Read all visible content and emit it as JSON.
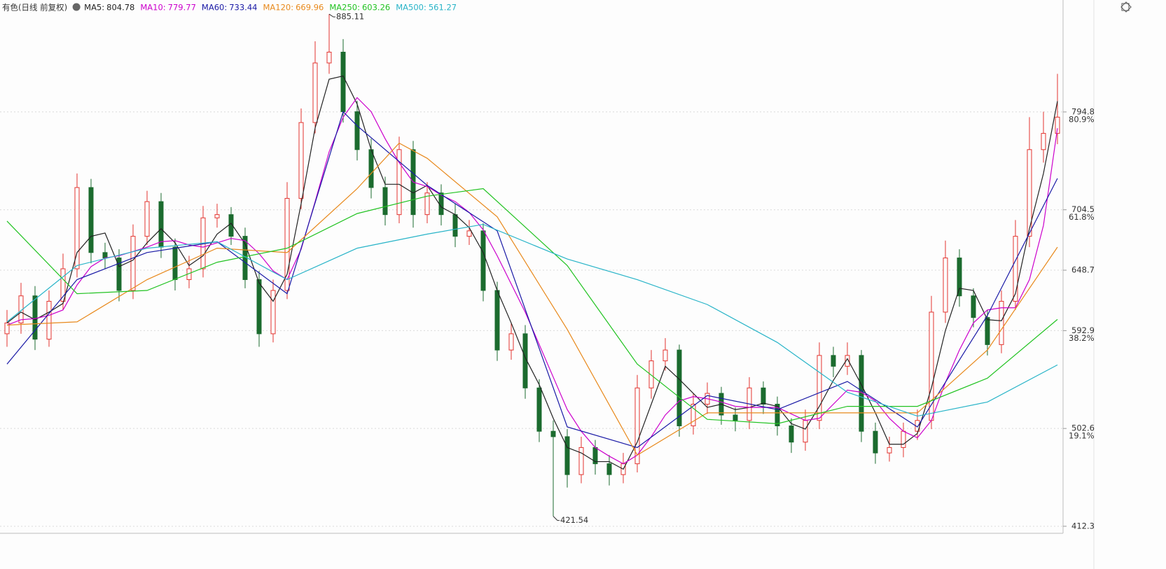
{
  "chart_data": {
    "type": "candlestick",
    "title": "有色(日线 前复权)",
    "up_color": "#e3342f",
    "down_color": "#1b6b2e",
    "open": [
      590,
      600,
      625,
      585,
      620,
      650,
      725,
      665,
      660,
      630,
      680,
      712,
      670,
      640,
      650,
      697,
      700,
      680,
      640,
      590,
      630,
      715,
      785,
      840,
      850,
      795,
      760,
      725,
      700,
      760,
      700,
      720,
      700,
      680,
      685,
      630,
      575,
      590,
      540,
      500,
      495,
      460,
      485,
      470,
      460,
      470,
      540,
      565,
      575,
      505,
      525,
      535,
      515,
      510,
      540,
      525,
      505,
      490,
      510,
      570,
      560,
      570,
      500,
      480,
      485,
      500,
      510,
      610,
      660,
      625,
      605,
      580,
      620,
      680,
      760,
      775
    ],
    "high": [
      612,
      637,
      634,
      630,
      664,
      738,
      733,
      674,
      668,
      691,
      722,
      720,
      678,
      662,
      708,
      710,
      707,
      688,
      648,
      640,
      730,
      798,
      860,
      885.11,
      862,
      805,
      770,
      735,
      772,
      768,
      730,
      728,
      710,
      695,
      692,
      638,
      600,
      598,
      548,
      510,
      502,
      495,
      492,
      478,
      480,
      552,
      575,
      586,
      580,
      535,
      545,
      541,
      522,
      550,
      546,
      532,
      512,
      520,
      582,
      578,
      582,
      575,
      508,
      495,
      508,
      520,
      625,
      676,
      668,
      632,
      612,
      630,
      695,
      790,
      795,
      830
    ],
    "low": [
      578,
      590,
      575,
      578,
      612,
      642,
      655,
      650,
      620,
      622,
      672,
      660,
      630,
      632,
      642,
      688,
      672,
      632,
      578,
      582,
      622,
      705,
      775,
      830,
      785,
      750,
      715,
      690,
      692,
      688,
      692,
      690,
      670,
      672,
      620,
      565,
      566,
      530,
      490,
      421.54,
      448,
      452,
      460,
      450,
      452,
      462,
      530,
      556,
      495,
      497,
      516,
      506,
      500,
      502,
      516,
      496,
      480,
      482,
      502,
      550,
      552,
      490,
      470,
      472,
      476,
      492,
      502,
      600,
      615,
      596,
      570,
      572,
      612,
      670,
      748,
      765
    ],
    "close": [
      600,
      625,
      585,
      620,
      650,
      725,
      665,
      660,
      630,
      680,
      712,
      670,
      640,
      650,
      697,
      700,
      680,
      640,
      590,
      630,
      715,
      785,
      840,
      850,
      795,
      760,
      725,
      700,
      760,
      700,
      720,
      700,
      680,
      685,
      630,
      575,
      590,
      540,
      500,
      495,
      460,
      485,
      470,
      460,
      470,
      540,
      565,
      575,
      505,
      525,
      535,
      515,
      510,
      540,
      525,
      505,
      490,
      510,
      570,
      560,
      570,
      500,
      480,
      485,
      500,
      510,
      610,
      660,
      625,
      605,
      580,
      620,
      680,
      760,
      775,
      790
    ],
    "annotations": [
      {
        "index": 23,
        "field": "high"
      },
      {
        "index": 39,
        "field": "low"
      }
    ],
    "series": [
      {
        "name": "MA5:",
        "color": "#222222",
        "values": [
          600,
          610,
          603,
          610,
          618,
          665,
          680,
          683,
          652,
          658,
          674,
          687,
          674,
          653,
          662,
          682,
          692,
          673,
          637,
          620,
          645,
          710,
          780,
          825,
          828,
          802,
          760,
          728,
          728,
          720,
          727,
          707,
          700,
          688,
          665,
          630,
          600,
          568,
          543,
          512,
          485,
          480,
          472,
          472,
          465,
          490,
          525,
          560,
          548,
          535,
          522,
          525,
          520,
          522,
          526,
          523,
          507,
          502,
          523,
          547,
          567,
          543,
          517,
          488,
          488,
          498,
          540,
          593,
          632,
          630,
          603,
          602,
          627,
          687,
          738,
          804.78
        ]
      },
      {
        "name": "MA10:",
        "color": "#cc00cc",
        "values": [
          598,
          603,
          604,
          607,
          612,
          635,
          652,
          660,
          662,
          666,
          670,
          675,
          676,
          672,
          670,
          674,
          678,
          676,
          664,
          648,
          640,
          668,
          712,
          758,
          790,
          808,
          795,
          770,
          748,
          730,
          726,
          718,
          712,
          702,
          686,
          662,
          636,
          610,
          580,
          550,
          520,
          500,
          485,
          477,
          470,
          478,
          495,
          515,
          528,
          532,
          530,
          527,
          523,
          522,
          522,
          522,
          516,
          510,
          512,
          525,
          538,
          536,
          528,
          512,
          500,
          494,
          510,
          545,
          575,
          600,
          612,
          614,
          614,
          640,
          690,
          779.77
        ]
      },
      {
        "name": "MA60:",
        "color": "#1a1aa6",
        "x": [
          0,
          5,
          10,
          15,
          20,
          24,
          25,
          30,
          35,
          40,
          45,
          50,
          55,
          60,
          65,
          70,
          75
        ],
        "values": [
          562,
          640,
          665,
          675,
          627,
          795,
          782,
          727,
          685,
          504,
          485,
          533,
          520,
          546,
          504,
          607,
          733.44
        ]
      },
      {
        "name": "MA120:",
        "color": "#e8891c",
        "x": [
          0,
          5,
          10,
          15,
          20,
          25,
          28,
          30,
          35,
          40,
          45,
          50,
          55,
          60,
          65,
          70,
          75
        ],
        "values": [
          598,
          601,
          640,
          669,
          665,
          724,
          766,
          752,
          698,
          594,
          478,
          517,
          517,
          517,
          517,
          575,
          669.96
        ]
      },
      {
        "name": "MA250:",
        "color": "#22c322",
        "x": [
          0,
          5,
          10,
          15,
          20,
          25,
          30,
          34,
          40,
          45,
          50,
          55,
          60,
          65,
          70,
          75
        ],
        "values": [
          694,
          627,
          630,
          656,
          669,
          701,
          717,
          724,
          653,
          562,
          511,
          507,
          523,
          523,
          549,
          603.26
        ]
      },
      {
        "name": "MA500:",
        "color": "#28b4c8",
        "x": [
          0,
          5,
          10,
          15,
          20,
          25,
          30,
          34,
          40,
          45,
          50,
          55,
          60,
          65,
          70,
          75
        ],
        "values": [
          601,
          653,
          669,
          675,
          640,
          669,
          682,
          691,
          659,
          640,
          617,
          582,
          536,
          514,
          527,
          561.27
        ]
      }
    ],
    "ylim": [
      405.8,
      886.5
    ],
    "yticks": [
      412.3,
      502.6,
      592.9,
      648.7,
      704.5,
      794.8
    ],
    "fib_levels": [
      {
        "value": 502.6,
        "label": "19.1%"
      },
      {
        "value": 592.9,
        "label": "38.2%"
      },
      {
        "value": 704.5,
        "label": "61.8%"
      },
      {
        "value": 794.8,
        "label": "80.9%"
      }
    ],
    "grid": true
  }
}
